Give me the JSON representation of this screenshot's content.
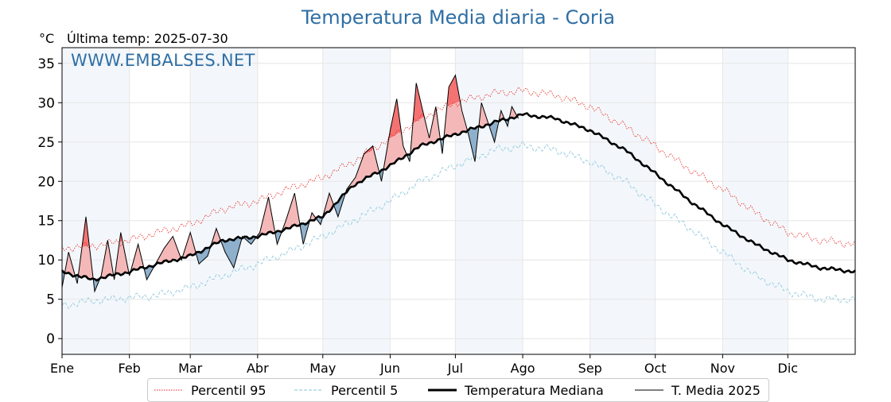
{
  "header": {
    "title": "Temperatura Media diaria - Coria",
    "unit_label": "°C",
    "last_temp_label": "Última temp: 2025-07-30",
    "watermark": "WWW.EMBALSES.NET"
  },
  "legend": {
    "items": [
      {
        "label": "Percentil 95",
        "color": "#e8241c",
        "style": "dotted"
      },
      {
        "label": "Percentil 5",
        "color": "#9ecfe0",
        "style": "dashed"
      },
      {
        "label": "Temperatura Mediana",
        "color": "#000000",
        "style": "thick"
      },
      {
        "label": "T. Media 2025",
        "color": "#000000",
        "style": "thin"
      }
    ]
  },
  "chart_data": {
    "type": "line",
    "title": "Temperatura Media diaria - Coria",
    "ylabel": "°C",
    "xlabel": "",
    "ylim": [
      -2,
      37
    ],
    "xlim": [
      1,
      366
    ],
    "yticks": [
      0,
      5,
      10,
      15,
      20,
      25,
      30,
      35
    ],
    "xticks": [
      {
        "label": "Ene",
        "day": 1
      },
      {
        "label": "Feb",
        "day": 32
      },
      {
        "label": "Mar",
        "day": 60
      },
      {
        "label": "Abr",
        "day": 91
      },
      {
        "label": "May",
        "day": 121
      },
      {
        "label": "Jun",
        "day": 152
      },
      {
        "label": "Jul",
        "day": 182
      },
      {
        "label": "Ago",
        "day": 213
      },
      {
        "label": "Sep",
        "day": 244
      },
      {
        "label": "Oct",
        "day": 274
      },
      {
        "label": "Nov",
        "day": 305
      },
      {
        "label": "Dic",
        "day": 335
      }
    ],
    "grid": true,
    "legend_position": "bottom",
    "fill_above_p95_color": "#f47272",
    "fill_above_median_color": "#f4b8b8",
    "fill_below_median_color": "#8eb0cc",
    "series": [
      {
        "name": "Percentil 95",
        "color": "#e8241c",
        "x": [
          1,
          15,
          32,
          45,
          60,
          75,
          91,
          105,
          121,
          135,
          152,
          166,
          182,
          200,
          213,
          228,
          244,
          260,
          274,
          290,
          305,
          320,
          335,
          350,
          366
        ],
        "y": [
          11.5,
          11.8,
          12.5,
          13.5,
          14.5,
          16.5,
          17.5,
          19.0,
          20.5,
          22.5,
          25.5,
          28.0,
          30.0,
          31.2,
          31.5,
          31.0,
          29.5,
          27.0,
          24.5,
          21.5,
          19.0,
          16.0,
          13.5,
          12.5,
          12.0
        ]
      },
      {
        "name": "Percentil 5",
        "color": "#9ecfe0",
        "x": [
          1,
          15,
          32,
          45,
          60,
          75,
          91,
          105,
          121,
          135,
          152,
          166,
          182,
          200,
          213,
          228,
          244,
          260,
          274,
          290,
          305,
          320,
          335,
          350,
          366
        ],
        "y": [
          4.2,
          4.8,
          5.2,
          5.5,
          6.5,
          8.0,
          9.5,
          11.0,
          13.0,
          15.0,
          17.5,
          20.0,
          22.0,
          24.0,
          24.5,
          24.0,
          22.5,
          20.0,
          17.0,
          14.0,
          11.0,
          8.0,
          6.0,
          5.0,
          5.0
        ]
      },
      {
        "name": "Temperatura Mediana",
        "color": "#000000",
        "x": [
          1,
          15,
          32,
          45,
          60,
          75,
          91,
          105,
          121,
          135,
          152,
          166,
          182,
          200,
          213,
          228,
          244,
          260,
          274,
          290,
          305,
          320,
          335,
          350,
          366
        ],
        "y": [
          8.5,
          7.5,
          8.5,
          9.5,
          10.5,
          12.5,
          13.0,
          14.0,
          15.5,
          19.5,
          22.0,
          24.5,
          26.0,
          27.5,
          28.5,
          28.0,
          26.5,
          24.0,
          21.0,
          17.5,
          14.5,
          12.0,
          10.0,
          9.0,
          8.5
        ]
      },
      {
        "name": "T. Media 2025",
        "color": "#000000",
        "x": [
          1,
          4,
          8,
          12,
          16,
          19,
          22,
          25,
          28,
          32,
          36,
          40,
          44,
          48,
          52,
          56,
          60,
          64,
          68,
          72,
          76,
          80,
          84,
          88,
          92,
          96,
          100,
          104,
          108,
          112,
          116,
          120,
          124,
          128,
          132,
          136,
          140,
          144,
          148,
          152,
          155,
          158,
          161,
          164,
          167,
          170,
          173,
          176,
          179,
          182,
          185,
          188,
          191,
          194,
          197,
          200,
          203,
          206,
          208,
          211
        ],
        "y": [
          6.5,
          11.0,
          7.0,
          15.5,
          6.0,
          8.0,
          12.5,
          7.5,
          13.5,
          8.0,
          12.0,
          7.5,
          9.5,
          11.5,
          13.0,
          10.0,
          13.5,
          9.5,
          10.5,
          14.0,
          11.0,
          9.0,
          13.0,
          12.0,
          13.5,
          18.0,
          12.0,
          15.0,
          18.5,
          12.0,
          16.0,
          14.5,
          18.5,
          15.5,
          19.0,
          20.5,
          23.5,
          24.5,
          20.0,
          26.5,
          30.5,
          24.5,
          22.5,
          32.5,
          29.0,
          25.5,
          29.5,
          23.5,
          32.0,
          33.5,
          29.0,
          26.0,
          22.5,
          30.0,
          27.5,
          25.0,
          29.0,
          27.0,
          29.5,
          28.0
        ]
      }
    ]
  }
}
